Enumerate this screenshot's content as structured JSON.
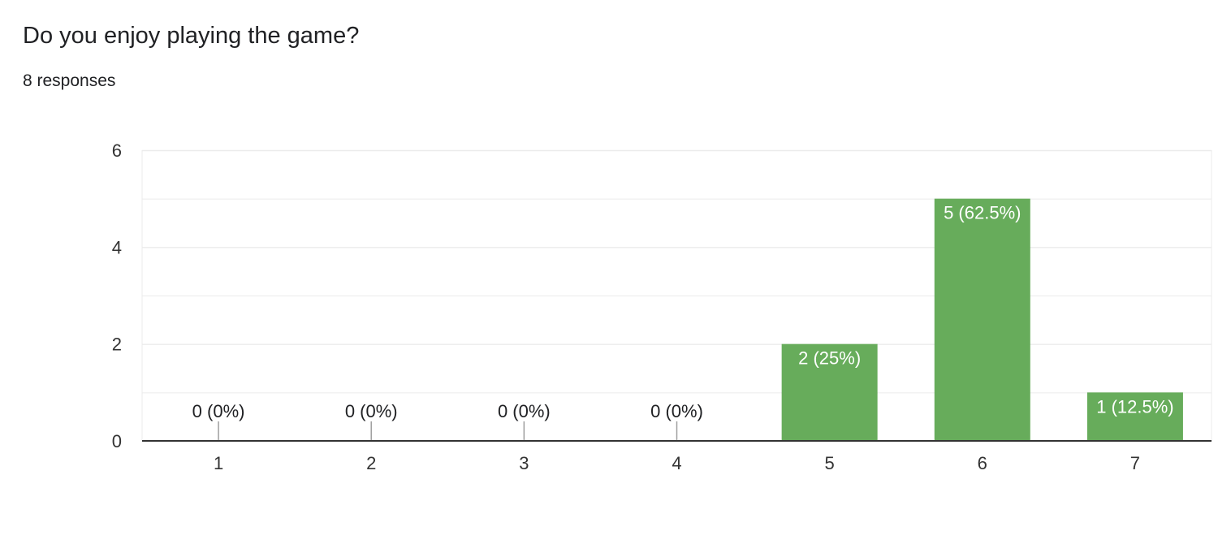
{
  "header": {
    "question": "Do you enjoy playing the game?",
    "responses": "8 responses"
  },
  "colors": {
    "bar": "#67ac5b",
    "grid": "#ebebeb",
    "axis": "#333333",
    "label_inside": "#ffffff",
    "label_outside": "#202124"
  },
  "chart_data": {
    "type": "bar",
    "categories": [
      "1",
      "2",
      "3",
      "4",
      "5",
      "6",
      "7"
    ],
    "values": [
      0,
      0,
      0,
      0,
      2,
      5,
      1
    ],
    "data_labels": [
      "0 (0%)",
      "0 (0%)",
      "0 (0%)",
      "0 (0%)",
      "2 (25%)",
      "5 (62.5%)",
      "1 (12.5%)"
    ],
    "ylim": [
      0,
      6
    ],
    "y_ticks": [
      "0",
      "2",
      "4",
      "6"
    ],
    "minor_gridlines": true,
    "title": "",
    "xlabel": "",
    "ylabel": ""
  }
}
